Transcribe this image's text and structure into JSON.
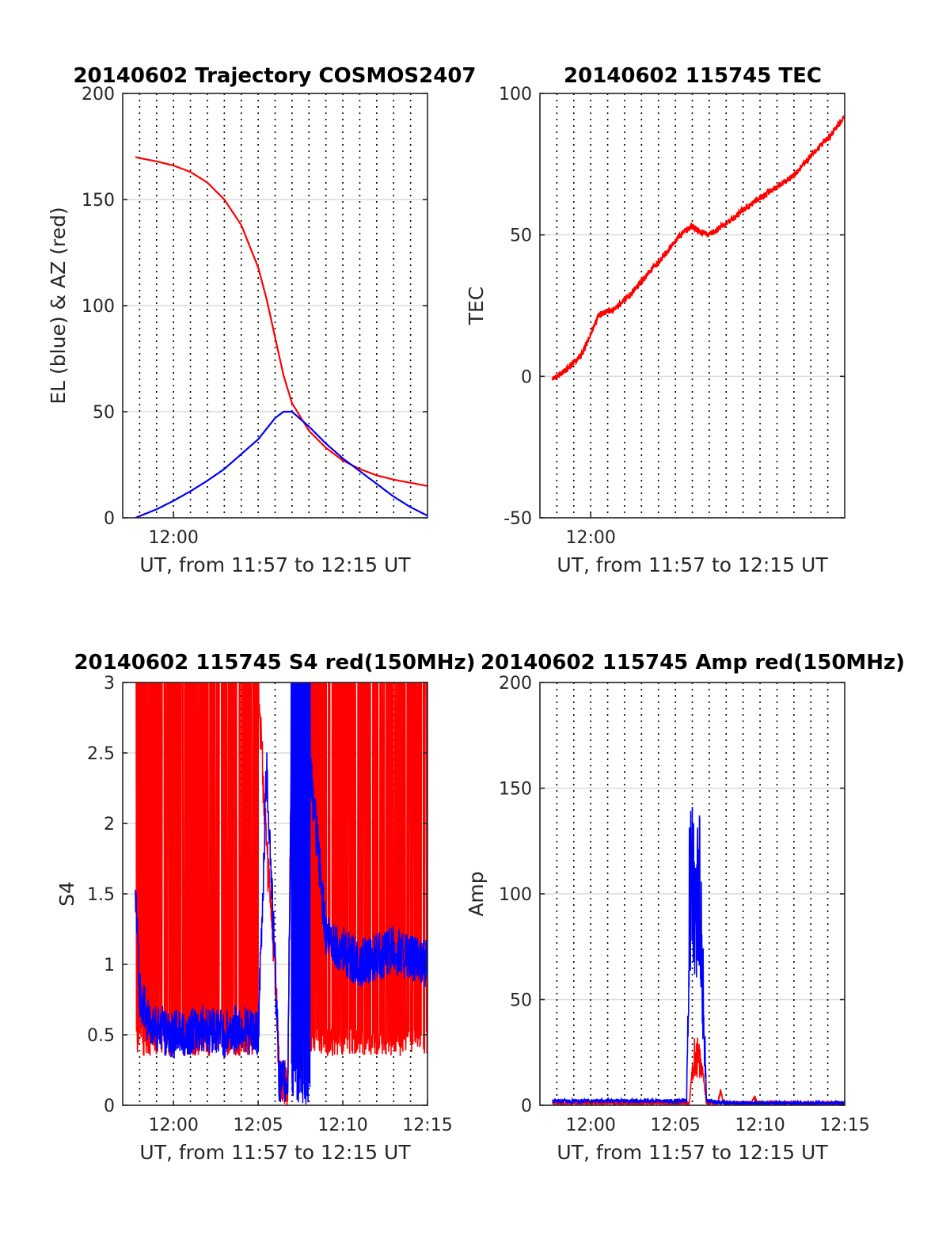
{
  "figure": {
    "background": "#ffffff"
  },
  "colors": {
    "red": "#ff0000",
    "blue": "#0000ff",
    "grid": "#dcdcdc",
    "axis": "#262626"
  },
  "chart_data": [
    {
      "id": "trajectory",
      "type": "line",
      "title": "20140602 Trajectory COSMOS2407",
      "xlabel": "UT, from 11:57 to 12:15 UT",
      "ylabel": "EL (blue) & AZ (red)",
      "xlim": [
        "11:57",
        "12:15"
      ],
      "ylim": [
        0,
        200
      ],
      "yticks": [
        0,
        50,
        100,
        150,
        200
      ],
      "xticks": [
        "12:00"
      ],
      "grid": true,
      "minute_lines": "dotted vertical line every minute",
      "series": [
        {
          "color": "#ff0000",
          "x": [
            "11:57:45",
            "11:58",
            "11:59",
            "12:00",
            "12:01",
            "12:02",
            "12:03",
            "12:04",
            "12:05",
            "12:05:30",
            "12:06",
            "12:06:30",
            "12:07",
            "12:08",
            "12:09",
            "12:10",
            "12:11",
            "12:12",
            "12:13",
            "12:14",
            "12:15"
          ],
          "values": [
            170,
            169.5,
            168,
            166,
            163,
            158,
            150,
            138,
            118,
            103,
            85,
            67,
            54,
            41,
            33,
            27,
            23,
            20,
            18,
            16.5,
            15
          ]
        },
        {
          "color": "#0000ff",
          "x": [
            "11:57:45",
            "11:58",
            "11:59",
            "12:00",
            "12:01",
            "12:02",
            "12:03",
            "12:04",
            "12:05",
            "12:05:30",
            "12:06",
            "12:06:30",
            "12:07",
            "12:08",
            "12:09",
            "12:10",
            "12:11",
            "12:12",
            "12:13",
            "12:14",
            "12:15"
          ],
          "values": [
            0,
            0.8,
            4,
            8,
            12.5,
            17.5,
            23,
            30,
            37,
            42,
            47,
            50,
            50,
            43,
            35,
            28,
            22,
            16,
            10,
            5,
            1
          ]
        }
      ]
    },
    {
      "id": "tec",
      "type": "line",
      "title": "20140602 115745 TEC",
      "xlabel": "UT, from 11:57 to 12:15 UT",
      "ylabel": "TEC",
      "xlim": [
        "11:57",
        "12:15"
      ],
      "ylim": [
        -50,
        100
      ],
      "yticks": [
        -50,
        0,
        50,
        100
      ],
      "xticks": [
        "12:00"
      ],
      "grid": true,
      "minute_lines": "dotted vertical line every minute",
      "series": [
        {
          "color": "#ff0000",
          "x": [
            "11:57:45",
            "11:58:30",
            "11:59:30",
            "12:00",
            "12:00:30",
            "12:01:30",
            "12:02:30",
            "12:03:30",
            "12:04:30",
            "12:05",
            "12:05:30",
            "12:06",
            "12:06:30",
            "12:07",
            "12:07:30",
            "12:08:30",
            "12:09",
            "12:10",
            "12:11",
            "12:12",
            "12:13",
            "12:14",
            "12:15"
          ],
          "values": [
            -1,
            2,
            8,
            15,
            22,
            24,
            30,
            37,
            44,
            48,
            51,
            53,
            51,
            50,
            52,
            56,
            59,
            63,
            67,
            71,
            78,
            84,
            92
          ]
        }
      ]
    },
    {
      "id": "s4",
      "type": "line",
      "title": "20140602 115745 S4 red(150MHz)",
      "xlabel": "UT, from 11:57 to 12:15 UT",
      "ylabel": "S4",
      "xlim": [
        "11:57",
        "12:15"
      ],
      "ylim": [
        0,
        3
      ],
      "yticks": [
        0,
        0.5,
        1,
        1.5,
        2,
        2.5,
        3
      ],
      "ytick_labels": [
        "0",
        "0.5",
        "1",
        "1.5",
        "2",
        "2.5",
        "3"
      ],
      "xticks": [
        "12:00",
        "12:05",
        "12:10",
        "12:15"
      ],
      "grid": true,
      "minute_lines": "dotted vertical line every minute",
      "series": [
        {
          "color": "#ff0000",
          "note_range": [
            0,
            3
          ],
          "x": [
            "11:57:45",
            "11:59",
            "12:00",
            "12:01",
            "12:02",
            "12:03",
            "12:04",
            "12:05",
            "12:05:30",
            "12:06",
            "12:06:15",
            "12:06:45",
            "12:07",
            "12:08",
            "12:09",
            "12:10",
            "12:11",
            "12:12",
            "12:13",
            "12:14",
            "12:15"
          ],
          "values": [
            3,
            3,
            3,
            3,
            3,
            3,
            3,
            3,
            1.8,
            1.0,
            0.15,
            0.15,
            3,
            3,
            3,
            3,
            3,
            3,
            3,
            3,
            3
          ]
        },
        {
          "color": "#0000ff",
          "x": [
            "11:57:45",
            "11:58",
            "11:58:30",
            "11:59",
            "12:00",
            "12:01",
            "12:02",
            "12:03",
            "12:04",
            "12:05",
            "12:05:15",
            "12:05:30",
            "12:06",
            "12:06:15",
            "12:06:45",
            "12:07",
            "12:08",
            "12:09",
            "12:10",
            "12:11",
            "12:12",
            "12:13",
            "12:14",
            "12:15"
          ],
          "values": [
            1.5,
            0.8,
            0.6,
            0.55,
            0.5,
            0.52,
            0.55,
            0.5,
            0.55,
            0.5,
            1.4,
            2.4,
            1.0,
            0.15,
            0.15,
            3,
            2.5,
            1.2,
            1.1,
            1.0,
            1.05,
            1.1,
            1.05,
            1.0
          ]
        }
      ]
    },
    {
      "id": "amp",
      "type": "line",
      "title": "20140602 115745 Amp red(150MHz)",
      "xlabel": "UT, from 11:57 to 12:15 UT",
      "ylabel": "Amp",
      "xlim": [
        "11:57",
        "12:15"
      ],
      "ylim": [
        0,
        200
      ],
      "yticks": [
        0,
        50,
        100,
        150,
        200
      ],
      "xticks": [
        "12:00",
        "12:05",
        "12:10",
        "12:15"
      ],
      "grid": true,
      "minute_lines": "dotted vertical line every minute",
      "series": [
        {
          "color": "#ff0000",
          "x": [
            "11:57:45",
            "12:05",
            "12:05:50",
            "12:06:10",
            "12:06:30",
            "12:06:50",
            "12:07:30",
            "12:07:40",
            "12:07:50",
            "12:09:30",
            "12:09:40",
            "12:09:50",
            "12:15"
          ],
          "values": [
            1,
            1,
            1,
            35,
            25,
            1,
            1,
            7,
            1,
            1,
            4,
            1,
            1
          ]
        },
        {
          "color": "#0000ff",
          "x": [
            "11:57:45",
            "12:05",
            "12:05:40",
            "12:05:50",
            "12:06:00",
            "12:06:10",
            "12:06:20",
            "12:06:30",
            "12:06:40",
            "12:06:50",
            "12:07:00",
            "12:08",
            "12:10",
            "12:15"
          ],
          "values": [
            2,
            2,
            2,
            135,
            150,
            100,
            140,
            130,
            60,
            2,
            2,
            1,
            1,
            1
          ]
        }
      ]
    }
  ]
}
